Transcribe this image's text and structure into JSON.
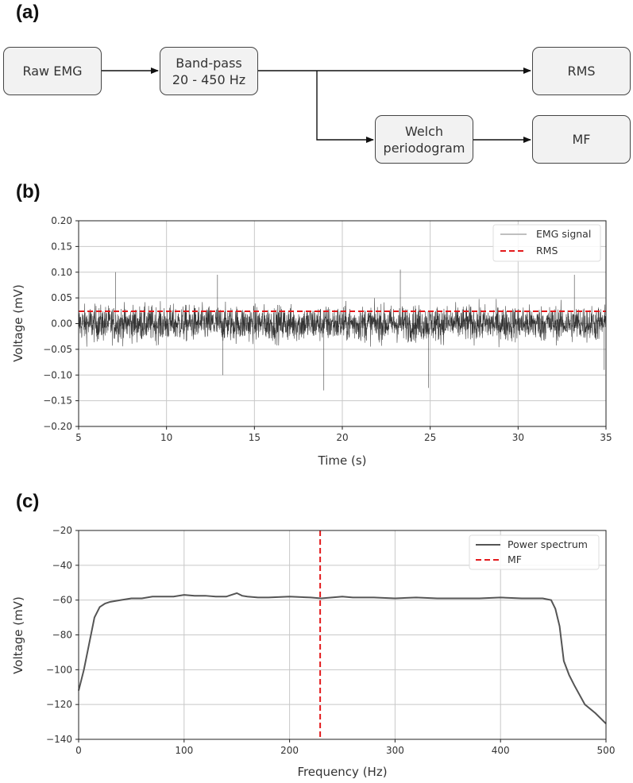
{
  "panels": {
    "a": "(a)",
    "b": "(b)",
    "c": "(c)"
  },
  "flowchart": {
    "nodes": {
      "raw_emg": "Raw EMG",
      "bandpass": "Band-pass\n20 - 450 Hz",
      "rms": "RMS",
      "welch": "Welch\nperiodogram",
      "mf": "MF"
    }
  },
  "chart_data": [
    {
      "type": "line",
      "xlabel": "Time (s)",
      "ylabel": "Voltage (mV)",
      "xlim": [
        5,
        35
      ],
      "ylim": [
        -0.2,
        0.2
      ],
      "xticks": [
        5,
        10,
        15,
        20,
        25,
        30,
        35
      ],
      "yticks": [
        "0.20",
        "0.15",
        "0.10",
        "0.05",
        "0.00",
        "−0.05",
        "−0.10",
        "−0.15",
        "−0.20"
      ],
      "ytick_values": [
        0.2,
        0.15,
        0.1,
        0.05,
        0,
        -0.05,
        -0.1,
        -0.15,
        -0.2
      ],
      "grid": true,
      "legend_position": "top-right",
      "series": [
        {
          "name": "EMG signal",
          "color": "#333333",
          "description_values": {
            "typical_envelope": [
              -0.045,
              0.045
            ],
            "peaks": [
              [
                7.1,
                0.1
              ],
              [
                12.9,
                0.095
              ],
              [
                13.2,
                -0.1
              ],
              [
                18.95,
                -0.13
              ],
              [
                23.3,
                0.105
              ],
              [
                24.9,
                -0.125
              ],
              [
                33.2,
                0.095
              ],
              [
                34.9,
                -0.09
              ]
            ]
          }
        },
        {
          "name": "RMS",
          "color": "#e31a1c",
          "style": "dashed",
          "values": [
            0.024
          ]
        }
      ]
    },
    {
      "type": "line",
      "xlabel": "Frequency (Hz)",
      "ylabel": "Voltage (mV)",
      "xlim": [
        0,
        500
      ],
      "ylim": [
        -140,
        -20
      ],
      "xticks": [
        0,
        100,
        200,
        300,
        400,
        500
      ],
      "yticks": [
        "−20",
        "−40",
        "−60",
        "−80",
        "−100",
        "−120",
        "−140"
      ],
      "ytick_values": [
        -20,
        -40,
        -60,
        -80,
        -100,
        -120,
        -140
      ],
      "grid": true,
      "legend_position": "top-right",
      "series": [
        {
          "name": "Power spectrum",
          "color": "#555555",
          "x": [
            0,
            5,
            10,
            15,
            20,
            25,
            30,
            40,
            50,
            60,
            70,
            80,
            90,
            100,
            110,
            120,
            130,
            140,
            145,
            150,
            155,
            160,
            170,
            180,
            200,
            220,
            230,
            240,
            250,
            260,
            280,
            300,
            320,
            340,
            360,
            380,
            400,
            420,
            440,
            448,
            452,
            456,
            460,
            465,
            470,
            480,
            490,
            500
          ],
          "y": [
            -112,
            -100,
            -85,
            -70,
            -64,
            -62,
            -61,
            -60,
            -59,
            -59,
            -58,
            -58,
            -58,
            -57,
            -57.5,
            -57.5,
            -58,
            -58,
            -57,
            -56,
            -57.5,
            -58,
            -58.5,
            -58.5,
            -58,
            -58.5,
            -59,
            -58.5,
            -58,
            -58.5,
            -58.5,
            -59,
            -58.5,
            -59,
            -59,
            -59,
            -58.5,
            -59,
            -59,
            -60,
            -65,
            -75,
            -95,
            -103,
            -109,
            -120,
            -125,
            -131
          ]
        },
        {
          "name": "MF",
          "color": "#e31a1c",
          "style": "dashed",
          "x_value": 229
        }
      ]
    }
  ]
}
